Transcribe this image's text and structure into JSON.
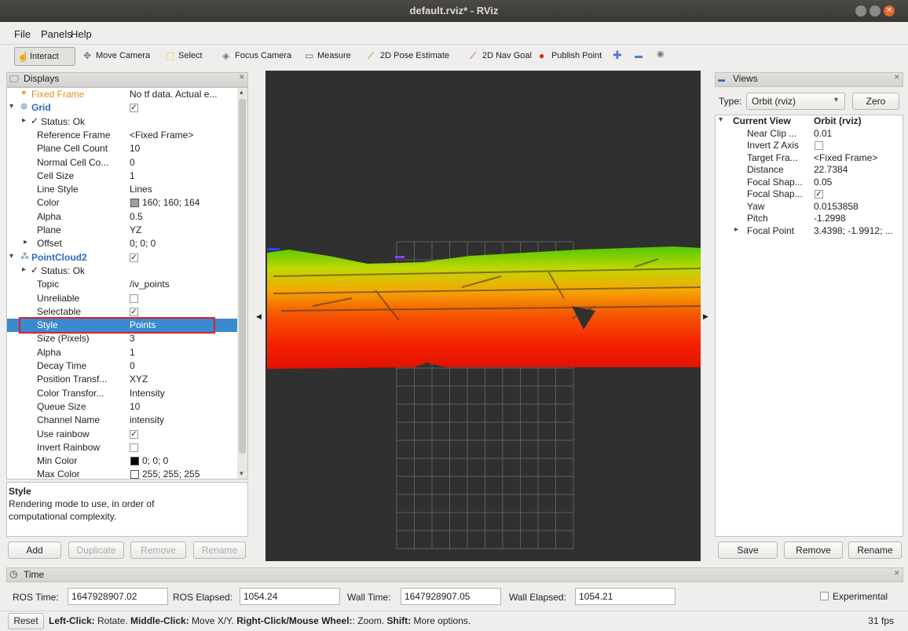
{
  "window": {
    "title": "default.rviz* - RViz"
  },
  "menu": [
    "File",
    "Panels",
    "Help"
  ],
  "toolbar": [
    "Interact",
    "Move Camera",
    "Select",
    "Focus Camera",
    "Measure",
    "2D Pose Estimate",
    "2D Nav Goal",
    "Publish Point"
  ],
  "displays": {
    "title": "Displays",
    "rows": [
      {
        "kind": "warning",
        "name": "Fixed Frame",
        "value": "No tf data.  Actual e..."
      },
      {
        "kind": "display",
        "expander": "open",
        "name": "Grid",
        "checked": true
      },
      {
        "kind": "status",
        "expander": "closed",
        "name": "Status: Ok"
      },
      {
        "kind": "property",
        "name": "Reference Frame",
        "value": "<Fixed Frame>"
      },
      {
        "kind": "property",
        "name": "Plane Cell Count",
        "value": "10"
      },
      {
        "kind": "property",
        "name": "Normal Cell Co...",
        "value": "0"
      },
      {
        "kind": "property",
        "name": "Cell Size",
        "value": "1"
      },
      {
        "kind": "property",
        "name": "Line Style",
        "value": "Lines"
      },
      {
        "kind": "property",
        "name": "Color",
        "value": "160; 160; 164",
        "swatch": "#a0a0a4"
      },
      {
        "kind": "property",
        "name": "Alpha",
        "value": "0.5"
      },
      {
        "kind": "property",
        "name": "Plane",
        "value": "YZ"
      },
      {
        "kind": "property",
        "expander": "closed",
        "name": "Offset",
        "value": "0; 0; 0"
      },
      {
        "kind": "display",
        "expander": "open",
        "name": "PointCloud2",
        "checked": true
      },
      {
        "kind": "status",
        "expander": "closed",
        "name": "Status: Ok"
      },
      {
        "kind": "property",
        "name": "Topic",
        "value": "/iv_points"
      },
      {
        "kind": "property",
        "name": "Unreliable",
        "checked": false
      },
      {
        "kind": "property",
        "name": "Selectable",
        "checked": true
      },
      {
        "kind": "property",
        "name": "Style",
        "value": "Points",
        "selected": true,
        "highlight": true
      },
      {
        "kind": "property",
        "name": "Size (Pixels)",
        "value": "3"
      },
      {
        "kind": "property",
        "name": "Alpha",
        "value": "1"
      },
      {
        "kind": "property",
        "name": "Decay Time",
        "value": "0"
      },
      {
        "kind": "property",
        "name": "Position Transf...",
        "value": "XYZ"
      },
      {
        "kind": "property",
        "name": "Color Transfor...",
        "value": "Intensity"
      },
      {
        "kind": "property",
        "name": "Queue Size",
        "value": "10"
      },
      {
        "kind": "property",
        "name": "Channel Name",
        "value": "intensity"
      },
      {
        "kind": "property",
        "name": "Use rainbow",
        "checked": true
      },
      {
        "kind": "property",
        "name": "Invert Rainbow",
        "checked": false
      },
      {
        "kind": "property",
        "name": "Min Color",
        "value": "0; 0; 0",
        "swatch": "#000000"
      },
      {
        "kind": "property",
        "name": "Max Color",
        "value": "255; 255; 255",
        "swatch": "#ffffff"
      }
    ],
    "description": {
      "title": "Style",
      "text": "Rendering mode to use, in order of computational complexity."
    },
    "buttons": [
      "Add",
      "Duplicate",
      "Remove",
      "Rename"
    ]
  },
  "views": {
    "title": "Views",
    "type_label": "Type:",
    "type_value": "Orbit (rviz)",
    "zero": "Zero",
    "rows": [
      {
        "kind": "group",
        "expander": "open",
        "name": "Current View",
        "value": "Orbit (rviz)"
      },
      {
        "kind": "property",
        "name": "Near Clip ...",
        "value": "0.01"
      },
      {
        "kind": "property",
        "name": "Invert Z Axis",
        "checked": false
      },
      {
        "kind": "property",
        "name": "Target Fra...",
        "value": "<Fixed Frame>"
      },
      {
        "kind": "property",
        "name": "Distance",
        "value": "22.7384"
      },
      {
        "kind": "property",
        "name": "Focal Shap...",
        "value": "0.05"
      },
      {
        "kind": "property",
        "name": "Focal Shap...",
        "checked": true
      },
      {
        "kind": "property",
        "name": "Yaw",
        "value": "0.0153858"
      },
      {
        "kind": "property",
        "name": "Pitch",
        "value": "-1.2998"
      },
      {
        "kind": "property",
        "expander": "closed",
        "name": "Focal Point",
        "value": "3.4398; -1.9912; ..."
      }
    ],
    "buttons": [
      "Save",
      "Remove",
      "Rename"
    ]
  },
  "time": {
    "title": "Time",
    "fields": [
      {
        "label": "ROS Time:",
        "value": "1647928907.02"
      },
      {
        "label": "ROS Elapsed:",
        "value": "1054.24"
      },
      {
        "label": "Wall Time:",
        "value": "1647928907.05"
      },
      {
        "label": "Wall Elapsed:",
        "value": "1054.21"
      }
    ],
    "experimental": "Experimental"
  },
  "status": {
    "reset": "Reset",
    "hint": [
      "Left-Click:",
      " Rotate. ",
      "Middle-Click:",
      " Move X/Y. ",
      "Right-Click/Mouse Wheel:",
      ": Zoom. ",
      "Shift:",
      " More options."
    ],
    "fps": "31 fps"
  }
}
